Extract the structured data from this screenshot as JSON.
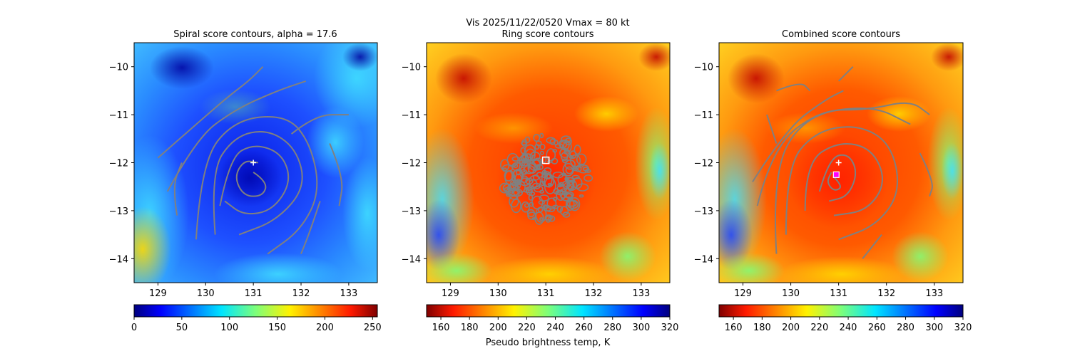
{
  "figure": {
    "suptitle_line1": "Vis  2025/11/22/0520    Vmax = 80 kt",
    "cbar_label": "Pseudo brightness temp, K",
    "contour_color": "#808080",
    "center_marker": "plus-marker",
    "ring_marker": "square-marker",
    "combined_marker": "magenta-square-marker"
  },
  "chart_data": [
    {
      "type": "heatmap",
      "title": "Spiral score contours, alpha = 17.6",
      "colormap": "jet",
      "xlim": [
        128.5,
        133.6
      ],
      "ylim": [
        -14.5,
        -9.5
      ],
      "xticks": [
        129,
        130,
        131,
        132,
        133
      ],
      "yticks": [
        -10,
        -11,
        -12,
        -13,
        -14
      ],
      "colorbar": {
        "min": 0,
        "max": 255,
        "ticks": [
          0,
          50,
          100,
          150,
          200,
          250
        ],
        "reversed_colormap": false
      },
      "center": {
        "x": 131.0,
        "y": -12.0
      },
      "contours": [
        [
          [
            131.0,
            -12.2
          ],
          [
            131.3,
            -12.4
          ],
          [
            131.2,
            -12.7
          ],
          [
            130.8,
            -12.7
          ],
          [
            130.6,
            -12.3
          ],
          [
            130.8,
            -11.95
          ],
          [
            131.1,
            -12.0
          ]
        ],
        [
          [
            130.3,
            -12.9
          ],
          [
            130.5,
            -11.9
          ],
          [
            131.0,
            -11.6
          ],
          [
            131.6,
            -11.8
          ],
          [
            131.8,
            -12.4
          ],
          [
            131.4,
            -13.0
          ],
          [
            130.8,
            -13.1
          ],
          [
            130.4,
            -12.8
          ]
        ],
        [
          [
            130.2,
            -13.5
          ],
          [
            130.1,
            -12.2
          ],
          [
            130.6,
            -11.45
          ],
          [
            131.3,
            -11.3
          ],
          [
            131.9,
            -11.7
          ],
          [
            132.1,
            -12.5
          ],
          [
            131.5,
            -13.2
          ],
          [
            130.7,
            -13.5
          ]
        ],
        [
          [
            129.8,
            -13.6
          ],
          [
            129.9,
            -12.0
          ],
          [
            130.6,
            -11.1
          ],
          [
            131.7,
            -11.0
          ],
          [
            132.2,
            -11.6
          ],
          [
            132.4,
            -12.6
          ],
          [
            132.0,
            -13.4
          ],
          [
            131.3,
            -13.9
          ]
        ],
        [
          [
            129.2,
            -12.6
          ],
          [
            129.8,
            -11.5
          ],
          [
            130.6,
            -10.9
          ],
          [
            131.5,
            -10.5
          ],
          [
            132.1,
            -10.3
          ]
        ],
        [
          [
            129.0,
            -11.9
          ],
          [
            129.8,
            -11.2
          ],
          [
            130.5,
            -10.6
          ],
          [
            130.9,
            -10.3
          ],
          [
            131.2,
            -10.0
          ]
        ],
        [
          [
            131.8,
            -11.4
          ],
          [
            132.3,
            -11.0
          ],
          [
            133.0,
            -11.0
          ]
        ],
        [
          [
            132.6,
            -11.6
          ],
          [
            132.9,
            -12.3
          ],
          [
            132.8,
            -12.9
          ]
        ],
        [
          [
            129.4,
            -13.1
          ],
          [
            129.3,
            -12.5
          ],
          [
            129.5,
            -12.0
          ]
        ],
        [
          [
            132.4,
            -12.8
          ],
          [
            132.2,
            -13.4
          ],
          [
            132.0,
            -13.9
          ]
        ]
      ]
    },
    {
      "type": "heatmap",
      "title": "Ring score contours",
      "colormap": "jet_r",
      "xlim": [
        128.5,
        133.6
      ],
      "ylim": [
        -14.5,
        -9.5
      ],
      "xticks": [
        129,
        130,
        131,
        132,
        133
      ],
      "yticks": [
        -10,
        -11,
        -12,
        -13,
        -14
      ],
      "colorbar": {
        "min": 150,
        "max": 320,
        "ticks": [
          160,
          180,
          200,
          220,
          240,
          260,
          280,
          300,
          320
        ],
        "reversed_colormap": true
      },
      "center": {
        "x": 131.0,
        "y": -11.95
      },
      "ring_region": {
        "x_min": 130.1,
        "x_max": 131.9,
        "y_min": -13.2,
        "y_max": -11.4
      }
    },
    {
      "type": "heatmap",
      "title": "Combined score contours",
      "colormap": "jet_r",
      "xlim": [
        128.5,
        133.6
      ],
      "ylim": [
        -14.5,
        -9.5
      ],
      "xticks": [
        129,
        130,
        131,
        132,
        133
      ],
      "yticks": [
        -10,
        -11,
        -12,
        -13,
        -14
      ],
      "colorbar": {
        "min": 150,
        "max": 320,
        "ticks": [
          160,
          180,
          200,
          220,
          240,
          260,
          280,
          300,
          320
        ],
        "reversed_colormap": true
      },
      "center": {
        "x": 131.0,
        "y": -12.0
      },
      "combined_center": {
        "x": 130.95,
        "y": -12.25
      },
      "contours": [
        [
          [
            130.9,
            -12.3
          ],
          [
            131.1,
            -12.5
          ],
          [
            130.9,
            -12.6
          ],
          [
            130.75,
            -12.4
          ],
          [
            130.85,
            -12.2
          ]
        ],
        [
          [
            130.6,
            -12.6
          ],
          [
            130.8,
            -11.9
          ],
          [
            131.2,
            -11.8
          ],
          [
            131.4,
            -12.2
          ],
          [
            131.2,
            -12.7
          ],
          [
            130.8,
            -12.8
          ]
        ],
        [
          [
            130.3,
            -13.0
          ],
          [
            130.3,
            -12.0
          ],
          [
            131.0,
            -11.55
          ],
          [
            131.7,
            -11.7
          ],
          [
            132.0,
            -12.4
          ],
          [
            131.6,
            -13.0
          ],
          [
            130.9,
            -13.1
          ]
        ],
        [
          [
            129.9,
            -13.5
          ],
          [
            129.9,
            -12.1
          ],
          [
            130.5,
            -11.35
          ],
          [
            131.4,
            -11.2
          ],
          [
            132.1,
            -11.6
          ],
          [
            132.3,
            -12.6
          ],
          [
            131.8,
            -13.3
          ],
          [
            131.0,
            -13.6
          ]
        ],
        [
          [
            129.7,
            -13.9
          ],
          [
            129.6,
            -12.2
          ],
          [
            130.3,
            -11.0
          ],
          [
            131.7,
            -10.8
          ],
          [
            132.5,
            -11.2
          ]
        ],
        [
          [
            129.3,
            -12.9
          ],
          [
            129.6,
            -11.7
          ],
          [
            130.6,
            -10.9
          ],
          [
            131.6,
            -10.9
          ],
          [
            132.5,
            -10.7
          ],
          [
            132.9,
            -11.0
          ]
        ],
        [
          [
            129.2,
            -12.4
          ],
          [
            129.9,
            -11.3
          ],
          [
            130.7,
            -10.7
          ],
          [
            131.1,
            -10.5
          ]
        ],
        [
          [
            129.7,
            -10.5
          ],
          [
            130.2,
            -10.3
          ],
          [
            130.4,
            -10.5
          ]
        ],
        [
          [
            131.0,
            -10.3
          ],
          [
            131.3,
            -10.0
          ]
        ],
        [
          [
            132.7,
            -11.8
          ],
          [
            133.0,
            -12.4
          ],
          [
            132.9,
            -12.7
          ]
        ],
        [
          [
            131.9,
            -13.5
          ],
          [
            131.5,
            -14.0
          ]
        ],
        [
          [
            129.5,
            -11.0
          ],
          [
            129.7,
            -11.6
          ]
        ]
      ]
    }
  ]
}
